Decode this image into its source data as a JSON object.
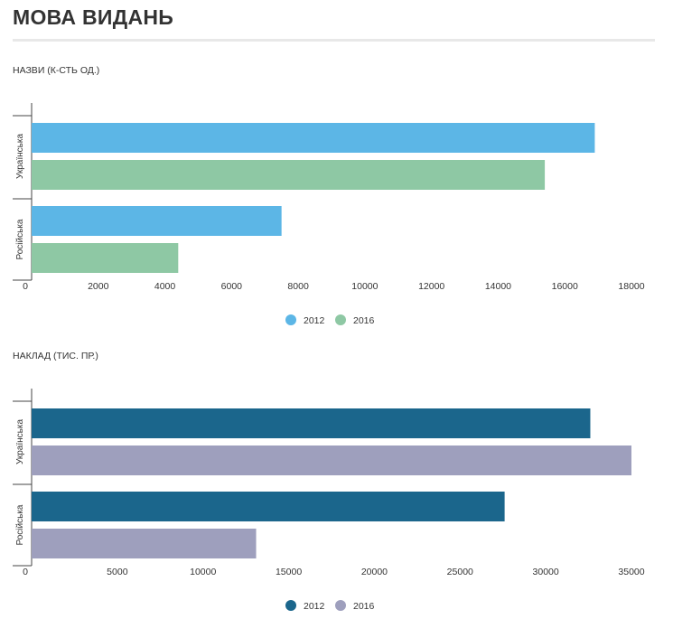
{
  "page": {
    "title": "МОВА ВИДАНЬ"
  },
  "chart_data": [
    {
      "type": "bar",
      "orientation": "horizontal",
      "title": "НАЗВИ (К-СТЬ ОД.)",
      "categories": [
        "Українська",
        "Російська"
      ],
      "series": [
        {
          "name": "2012",
          "color": "#5cb6e6",
          "values": [
            16900,
            7500
          ]
        },
        {
          "name": "2016",
          "color": "#8ec8a4",
          "values": [
            15400,
            4400
          ]
        }
      ],
      "x_ticks": [
        0,
        2000,
        4000,
        6000,
        8000,
        10000,
        12000,
        14000,
        16000,
        18000
      ],
      "xlim": [
        0,
        18000
      ],
      "grid": false,
      "legend_position": "bottom-center"
    },
    {
      "type": "bar",
      "orientation": "horizontal",
      "title": "НАКЛАД (ТИС. ПР.)",
      "categories": [
        "Українська",
        "Російська"
      ],
      "series": [
        {
          "name": "2012",
          "color": "#1b668c",
          "values": [
            32600,
            27600
          ]
        },
        {
          "name": "2016",
          "color": "#9e9fbd",
          "values": [
            35000,
            13100
          ]
        }
      ],
      "x_ticks": [
        0,
        5000,
        10000,
        15000,
        20000,
        25000,
        30000,
        35000
      ],
      "xlim": [
        0,
        35000
      ],
      "grid": false,
      "legend_position": "bottom-center"
    }
  ]
}
